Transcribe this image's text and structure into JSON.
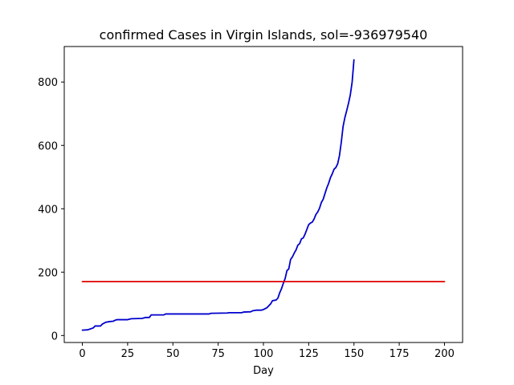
{
  "chart_data": {
    "type": "line",
    "title": "confirmed Cases in Virgin Islands, sol=-936979540",
    "xlabel": "Day",
    "ylabel": "",
    "xlim": [
      -10,
      210
    ],
    "ylim": [
      -22,
      912
    ],
    "xticks": [
      0,
      25,
      50,
      75,
      100,
      125,
      150,
      175,
      200
    ],
    "yticks": [
      0,
      200,
      400,
      600,
      800
    ],
    "grid": false,
    "series": [
      {
        "color": "#0000cc",
        "points": [
          [
            0,
            17
          ],
          [
            3,
            18
          ],
          [
            5,
            22
          ],
          [
            6,
            24
          ],
          [
            7,
            30
          ],
          [
            10,
            30
          ],
          [
            11,
            36
          ],
          [
            13,
            42
          ],
          [
            15,
            44
          ],
          [
            17,
            45
          ],
          [
            18,
            48
          ],
          [
            19,
            50
          ],
          [
            25,
            50
          ],
          [
            27,
            53
          ],
          [
            33,
            54
          ],
          [
            35,
            57
          ],
          [
            37,
            57
          ],
          [
            38,
            65
          ],
          [
            45,
            65
          ],
          [
            46,
            68
          ],
          [
            70,
            68
          ],
          [
            71,
            70
          ],
          [
            80,
            71
          ],
          [
            81,
            72
          ],
          [
            88,
            72
          ],
          [
            89,
            74
          ],
          [
            93,
            75
          ],
          [
            94,
            78
          ],
          [
            96,
            80
          ],
          [
            99,
            80
          ],
          [
            100,
            82
          ],
          [
            102,
            88
          ],
          [
            104,
            100
          ],
          [
            105,
            110
          ],
          [
            107,
            112
          ],
          [
            108,
            118
          ],
          [
            109,
            135
          ],
          [
            110,
            148
          ],
          [
            111,
            165
          ],
          [
            112,
            180
          ],
          [
            113,
            205
          ],
          [
            114,
            210
          ],
          [
            115,
            240
          ],
          [
            116,
            248
          ],
          [
            117,
            260
          ],
          [
            118,
            270
          ],
          [
            119,
            285
          ],
          [
            120,
            290
          ],
          [
            121,
            305
          ],
          [
            122,
            308
          ],
          [
            123,
            320
          ],
          [
            124,
            335
          ],
          [
            125,
            350
          ],
          [
            126,
            355
          ],
          [
            127,
            358
          ],
          [
            128,
            368
          ],
          [
            129,
            382
          ],
          [
            130,
            390
          ],
          [
            131,
            402
          ],
          [
            132,
            420
          ],
          [
            133,
            430
          ],
          [
            134,
            448
          ],
          [
            135,
            466
          ],
          [
            136,
            480
          ],
          [
            137,
            498
          ],
          [
            138,
            510
          ],
          [
            139,
            525
          ],
          [
            140,
            530
          ],
          [
            141,
            542
          ],
          [
            142,
            568
          ],
          [
            143,
            610
          ],
          [
            144,
            660
          ],
          [
            145,
            688
          ],
          [
            146,
            710
          ],
          [
            147,
            733
          ],
          [
            148,
            760
          ],
          [
            149,
            800
          ],
          [
            150,
            870
          ]
        ]
      },
      {
        "color": "#dd0000",
        "points": [
          [
            0,
            170
          ],
          [
            200,
            170
          ]
        ]
      }
    ]
  }
}
